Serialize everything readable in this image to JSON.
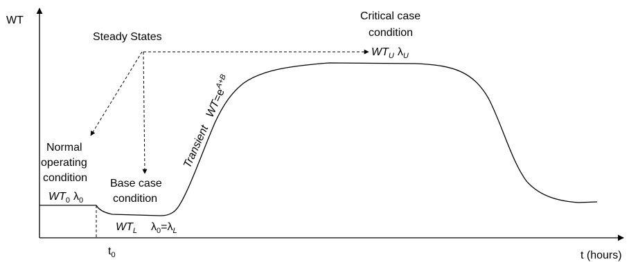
{
  "axes": {
    "y_label": "WT",
    "x_label": "t (hours)",
    "t0_base": "t",
    "t0_sub": "0"
  },
  "annotations": {
    "steady_states": "Steady States",
    "critical_line1": "Critical case",
    "critical_line2": "condition",
    "critical_wt": "WT",
    "critical_wt_sub": "U",
    "critical_lambda": "λ",
    "critical_lambda_sub": "U",
    "normal_line1": "Normal",
    "normal_line2": "operating",
    "normal_line3": "condition",
    "normal_wt": "WT",
    "normal_wt_sub": "0",
    "normal_lambda": "λ",
    "normal_lambda_sub": "0",
    "base_line1": "Base case",
    "base_line2": "condition",
    "base_wt": "WT",
    "base_wt_sub": "L",
    "base_eq_lambda1": "λ",
    "base_eq_sub1": "0",
    "base_eq_mid": "=λ",
    "base_eq_sub2": "L",
    "transient_word": "Transient",
    "transient_eq_wt": "WT",
    "transient_eq_mid": "=e",
    "transient_eq_sup": "A+B"
  }
}
